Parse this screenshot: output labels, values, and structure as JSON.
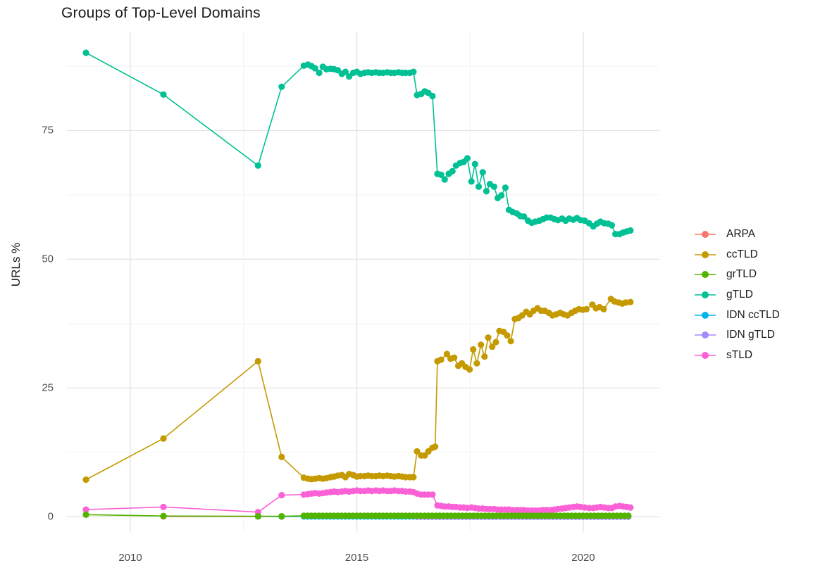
{
  "title": "Groups of Top-Level Domains",
  "chart_data": {
    "type": "line",
    "title": "Groups of Top-Level Domains",
    "xlabel": "",
    "ylabel": "URLs %",
    "grid": true,
    "legend_position": "right",
    "x_axis": {
      "lim": [
        2008.6,
        2021.68
      ],
      "major_ticks": [
        2010,
        2015,
        2020
      ],
      "tick_labels": [
        "2010",
        "2015",
        "2020"
      ],
      "minor_ticks": [
        2012.5,
        2017.5
      ]
    },
    "y_axis": {
      "lim": [
        -3.1,
        94.2
      ],
      "major_ticks": [
        0,
        25,
        50,
        75
      ],
      "tick_labels": [
        "0",
        "25",
        "50",
        "75"
      ],
      "minor_ticks": [
        12.5,
        37.5,
        62.5,
        87.5
      ]
    },
    "point_radius": 4.6,
    "line_width": 1.6,
    "grid_major_color": "#e4e4e4",
    "grid_minor_color": "#f1f1f1",
    "draw_order": [
      "ARPA",
      "IDN ccTLD",
      "IDN gTLD",
      "ccTLD",
      "gTLD",
      "sTLD",
      "grTLD"
    ],
    "series": [
      {
        "name": "ARPA",
        "color": "#F8766D",
        "points": [
          [
            2010.73,
            0.05
          ],
          [
            2012.82,
            0.05
          ],
          [
            2013.34,
            0.04
          ]
        ]
      },
      {
        "name": "ccTLD",
        "color": "#C49A00",
        "points": [
          [
            2009.02,
            7.2
          ],
          [
            2010.73,
            15.2
          ],
          [
            2012.82,
            30.2
          ],
          [
            2013.34,
            11.6
          ],
          [
            2013.83,
            7.6
          ],
          [
            2013.92,
            7.4
          ],
          [
            2014.0,
            7.3
          ],
          [
            2014.08,
            7.4
          ],
          [
            2014.17,
            7.5
          ],
          [
            2014.25,
            7.4
          ],
          [
            2014.33,
            7.5
          ],
          [
            2014.42,
            7.7
          ],
          [
            2014.5,
            7.8
          ],
          [
            2014.58,
            8.0
          ],
          [
            2014.67,
            8.1
          ],
          [
            2014.75,
            7.7
          ],
          [
            2014.83,
            8.3
          ],
          [
            2014.92,
            8.1
          ],
          [
            2015.0,
            7.8
          ],
          [
            2015.08,
            7.9
          ],
          [
            2015.17,
            7.9
          ],
          [
            2015.25,
            8.0
          ],
          [
            2015.33,
            7.9
          ],
          [
            2015.42,
            7.9
          ],
          [
            2015.5,
            8.0
          ],
          [
            2015.58,
            7.9
          ],
          [
            2015.67,
            8.0
          ],
          [
            2015.75,
            7.9
          ],
          [
            2015.83,
            7.8
          ],
          [
            2015.92,
            7.9
          ],
          [
            2016.0,
            7.8
          ],
          [
            2016.08,
            7.7
          ],
          [
            2016.17,
            7.7
          ],
          [
            2016.25,
            7.7
          ],
          [
            2016.33,
            12.7
          ],
          [
            2016.42,
            11.9
          ],
          [
            2016.5,
            11.9
          ],
          [
            2016.58,
            12.7
          ],
          [
            2016.67,
            13.4
          ],
          [
            2016.73,
            13.6
          ],
          [
            2016.78,
            30.2
          ],
          [
            2016.86,
            30.5
          ],
          [
            2016.99,
            31.6
          ],
          [
            2017.07,
            30.7
          ],
          [
            2017.15,
            30.9
          ],
          [
            2017.24,
            29.3
          ],
          [
            2017.32,
            29.8
          ],
          [
            2017.4,
            29.1
          ],
          [
            2017.49,
            28.6
          ],
          [
            2017.57,
            32.5
          ],
          [
            2017.65,
            29.8
          ],
          [
            2017.74,
            33.4
          ],
          [
            2017.82,
            31.1
          ],
          [
            2017.9,
            34.8
          ],
          [
            2017.99,
            33.0
          ],
          [
            2018.07,
            33.9
          ],
          [
            2018.15,
            36.1
          ],
          [
            2018.24,
            35.9
          ],
          [
            2018.32,
            35.2
          ],
          [
            2018.4,
            34.1
          ],
          [
            2018.49,
            38.4
          ],
          [
            2018.57,
            38.6
          ],
          [
            2018.65,
            39.1
          ],
          [
            2018.74,
            39.8
          ],
          [
            2018.82,
            39.3
          ],
          [
            2018.9,
            40.0
          ],
          [
            2018.99,
            40.5
          ],
          [
            2019.07,
            40.0
          ],
          [
            2019.15,
            40.0
          ],
          [
            2019.24,
            39.6
          ],
          [
            2019.32,
            39.1
          ],
          [
            2019.4,
            39.3
          ],
          [
            2019.49,
            39.6
          ],
          [
            2019.57,
            39.3
          ],
          [
            2019.65,
            39.1
          ],
          [
            2019.74,
            39.6
          ],
          [
            2019.82,
            40.0
          ],
          [
            2019.9,
            40.3
          ],
          [
            2019.99,
            40.2
          ],
          [
            2020.07,
            40.3
          ],
          [
            2020.2,
            41.2
          ],
          [
            2020.28,
            40.5
          ],
          [
            2020.36,
            40.7
          ],
          [
            2020.45,
            40.3
          ],
          [
            2020.61,
            42.3
          ],
          [
            2020.69,
            41.8
          ],
          [
            2020.78,
            41.6
          ],
          [
            2020.86,
            41.4
          ],
          [
            2020.94,
            41.6
          ],
          [
            2021.04,
            41.7
          ]
        ]
      },
      {
        "name": "grTLD",
        "color": "#53B400",
        "points": [
          [
            2009.02,
            0.4
          ],
          [
            2010.73,
            0.15
          ],
          [
            2012.82,
            0.1
          ],
          [
            2013.34,
            0.1
          ]
        ],
        "span": {
          "from": 2013.83,
          "to": 2021.04,
          "step": 0.0833,
          "y": 0.2
        }
      },
      {
        "name": "gTLD",
        "color": "#00C094",
        "points": [
          [
            2009.02,
            90.1
          ],
          [
            2010.73,
            82.0
          ],
          [
            2012.82,
            68.2
          ],
          [
            2013.34,
            83.5
          ],
          [
            2013.83,
            87.6
          ],
          [
            2013.92,
            87.8
          ],
          [
            2014.0,
            87.5
          ],
          [
            2014.08,
            87.1
          ],
          [
            2014.17,
            86.2
          ],
          [
            2014.25,
            87.4
          ],
          [
            2014.33,
            86.9
          ],
          [
            2014.42,
            87.0
          ],
          [
            2014.5,
            86.9
          ],
          [
            2014.58,
            86.7
          ],
          [
            2014.67,
            86.0
          ],
          [
            2014.75,
            86.4
          ],
          [
            2014.83,
            85.5
          ],
          [
            2014.92,
            86.2
          ],
          [
            2015.0,
            86.4
          ],
          [
            2015.08,
            86.0
          ],
          [
            2015.17,
            86.2
          ],
          [
            2015.25,
            86.3
          ],
          [
            2015.33,
            86.2
          ],
          [
            2015.42,
            86.3
          ],
          [
            2015.5,
            86.2
          ],
          [
            2015.58,
            86.2
          ],
          [
            2015.67,
            86.3
          ],
          [
            2015.75,
            86.2
          ],
          [
            2015.83,
            86.2
          ],
          [
            2015.92,
            86.3
          ],
          [
            2016.0,
            86.2
          ],
          [
            2016.08,
            86.2
          ],
          [
            2016.17,
            86.2
          ],
          [
            2016.25,
            86.4
          ],
          [
            2016.33,
            81.9
          ],
          [
            2016.42,
            82.1
          ],
          [
            2016.5,
            82.6
          ],
          [
            2016.58,
            82.3
          ],
          [
            2016.67,
            81.7
          ],
          [
            2016.78,
            66.6
          ],
          [
            2016.86,
            66.4
          ],
          [
            2016.94,
            65.5
          ],
          [
            2017.03,
            66.6
          ],
          [
            2017.11,
            67.1
          ],
          [
            2017.19,
            68.2
          ],
          [
            2017.28,
            68.7
          ],
          [
            2017.36,
            68.9
          ],
          [
            2017.44,
            69.6
          ],
          [
            2017.53,
            65.1
          ],
          [
            2017.61,
            68.5
          ],
          [
            2017.69,
            64.1
          ],
          [
            2017.78,
            66.9
          ],
          [
            2017.86,
            63.2
          ],
          [
            2017.94,
            64.6
          ],
          [
            2018.03,
            64.1
          ],
          [
            2018.11,
            61.9
          ],
          [
            2018.19,
            62.4
          ],
          [
            2018.28,
            63.9
          ],
          [
            2018.36,
            59.6
          ],
          [
            2018.44,
            59.2
          ],
          [
            2018.53,
            58.9
          ],
          [
            2018.61,
            58.4
          ],
          [
            2018.69,
            58.3
          ],
          [
            2018.78,
            57.5
          ],
          [
            2018.86,
            57.1
          ],
          [
            2018.94,
            57.3
          ],
          [
            2019.03,
            57.5
          ],
          [
            2019.11,
            57.8
          ],
          [
            2019.19,
            58.1
          ],
          [
            2019.28,
            58.1
          ],
          [
            2019.36,
            57.8
          ],
          [
            2019.44,
            57.6
          ],
          [
            2019.53,
            57.9
          ],
          [
            2019.61,
            57.5
          ],
          [
            2019.69,
            57.9
          ],
          [
            2019.78,
            57.7
          ],
          [
            2019.86,
            58.0
          ],
          [
            2019.94,
            57.6
          ],
          [
            2020.03,
            57.5
          ],
          [
            2020.13,
            57.0
          ],
          [
            2020.22,
            56.4
          ],
          [
            2020.3,
            56.9
          ],
          [
            2020.38,
            57.3
          ],
          [
            2020.46,
            57.0
          ],
          [
            2020.55,
            56.9
          ],
          [
            2020.63,
            56.6
          ],
          [
            2020.71,
            54.9
          ],
          [
            2020.8,
            54.9
          ],
          [
            2020.88,
            55.2
          ],
          [
            2020.96,
            55.4
          ],
          [
            2021.04,
            55.6
          ]
        ]
      },
      {
        "name": "IDN ccTLD",
        "color": "#00B6EB",
        "points": [
          [
            2012.82,
            0.08
          ],
          [
            2013.34,
            0.05
          ]
        ],
        "span": {
          "from": 2013.83,
          "to": 2021.04,
          "step": 0.0833,
          "y": 0.05
        }
      },
      {
        "name": "IDN gTLD",
        "color": "#A58AFF",
        "points": [],
        "span": {
          "from": 2016.33,
          "to": 2021.04,
          "step": 0.0833,
          "y": 0.0
        }
      },
      {
        "name": "sTLD",
        "color": "#FB61D7",
        "points": [
          [
            2009.02,
            1.4
          ],
          [
            2010.73,
            1.9
          ],
          [
            2012.82,
            0.9
          ],
          [
            2013.34,
            4.2
          ],
          [
            2013.83,
            4.3
          ],
          [
            2013.92,
            4.4
          ],
          [
            2014.0,
            4.5
          ],
          [
            2014.08,
            4.6
          ],
          [
            2014.17,
            4.5
          ],
          [
            2014.25,
            4.6
          ],
          [
            2014.33,
            4.7
          ],
          [
            2014.42,
            4.8
          ],
          [
            2014.5,
            4.9
          ],
          [
            2014.58,
            4.8
          ],
          [
            2014.67,
            4.9
          ],
          [
            2014.75,
            5.0
          ],
          [
            2014.83,
            4.9
          ],
          [
            2014.92,
            5.0
          ],
          [
            2015.0,
            5.1
          ],
          [
            2015.08,
            5.0
          ],
          [
            2015.17,
            5.0
          ],
          [
            2015.25,
            5.1
          ],
          [
            2015.33,
            5.0
          ],
          [
            2015.42,
            5.1
          ],
          [
            2015.5,
            5.0
          ],
          [
            2015.58,
            5.1
          ],
          [
            2015.67,
            5.0
          ],
          [
            2015.75,
            5.0
          ],
          [
            2015.83,
            5.1
          ],
          [
            2015.92,
            5.0
          ],
          [
            2016.0,
            5.0
          ],
          [
            2016.08,
            4.9
          ],
          [
            2016.17,
            4.9
          ],
          [
            2016.25,
            4.8
          ],
          [
            2016.33,
            4.5
          ],
          [
            2016.42,
            4.3
          ],
          [
            2016.5,
            4.3
          ],
          [
            2016.58,
            4.3
          ],
          [
            2016.67,
            4.3
          ],
          [
            2016.78,
            2.2
          ],
          [
            2016.86,
            2.1
          ],
          [
            2016.94,
            2.0
          ],
          [
            2017.03,
            2.0
          ],
          [
            2017.11,
            1.9
          ],
          [
            2017.19,
            1.9
          ],
          [
            2017.28,
            1.8
          ],
          [
            2017.36,
            1.8
          ],
          [
            2017.44,
            1.7
          ],
          [
            2017.53,
            1.8
          ],
          [
            2017.61,
            1.7
          ],
          [
            2017.69,
            1.6
          ],
          [
            2017.78,
            1.6
          ],
          [
            2017.86,
            1.5
          ],
          [
            2017.94,
            1.5
          ],
          [
            2018.03,
            1.5
          ],
          [
            2018.11,
            1.4
          ],
          [
            2018.19,
            1.4
          ],
          [
            2018.28,
            1.4
          ],
          [
            2018.36,
            1.4
          ],
          [
            2018.44,
            1.3
          ],
          [
            2018.53,
            1.3
          ],
          [
            2018.61,
            1.3
          ],
          [
            2018.69,
            1.3
          ],
          [
            2018.78,
            1.2
          ],
          [
            2018.86,
            1.2
          ],
          [
            2018.94,
            1.2
          ],
          [
            2019.03,
            1.2
          ],
          [
            2019.11,
            1.3
          ],
          [
            2019.19,
            1.3
          ],
          [
            2019.28,
            1.3
          ],
          [
            2019.36,
            1.4
          ],
          [
            2019.44,
            1.5
          ],
          [
            2019.53,
            1.6
          ],
          [
            2019.61,
            1.7
          ],
          [
            2019.69,
            1.8
          ],
          [
            2019.78,
            1.9
          ],
          [
            2019.86,
            2.0
          ],
          [
            2019.94,
            1.9
          ],
          [
            2020.03,
            1.8
          ],
          [
            2020.13,
            1.7
          ],
          [
            2020.22,
            1.7
          ],
          [
            2020.3,
            1.8
          ],
          [
            2020.38,
            1.9
          ],
          [
            2020.46,
            1.8
          ],
          [
            2020.55,
            1.7
          ],
          [
            2020.63,
            1.7
          ],
          [
            2020.71,
            2.0
          ],
          [
            2020.8,
            2.1
          ],
          [
            2020.88,
            2.0
          ],
          [
            2020.96,
            1.9
          ],
          [
            2021.04,
            1.8
          ]
        ]
      }
    ]
  }
}
